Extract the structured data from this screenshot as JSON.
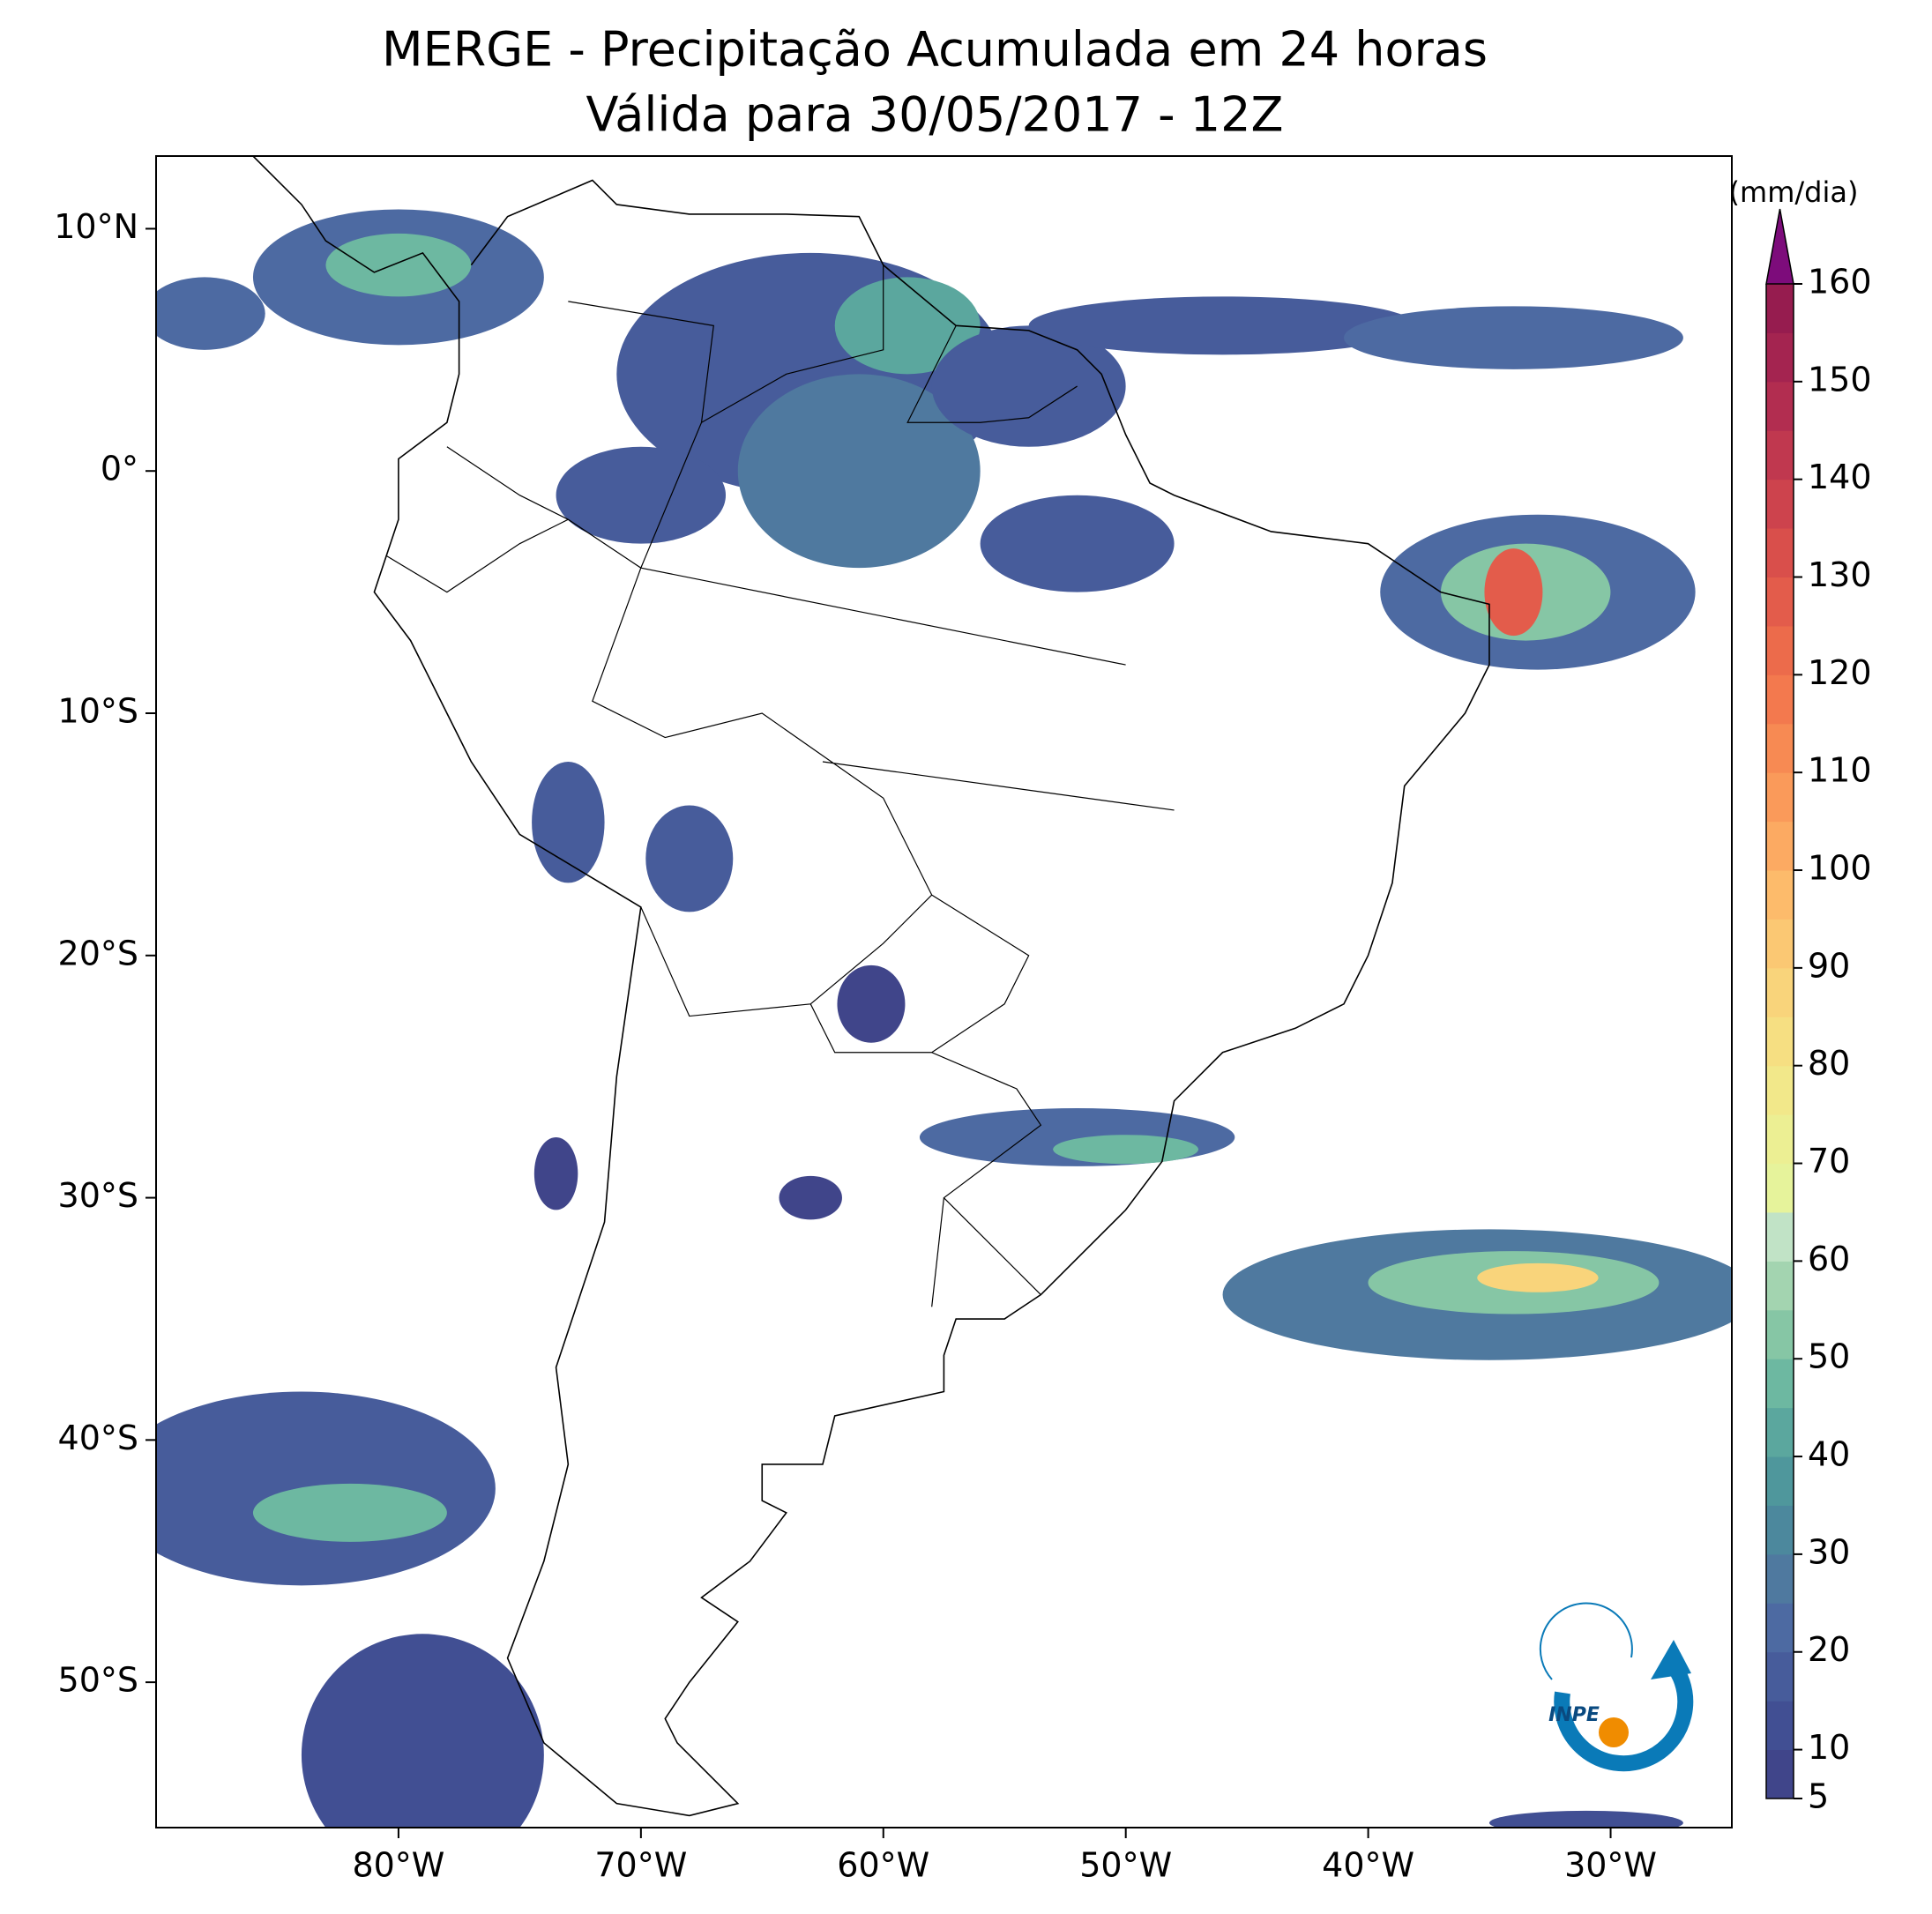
{
  "chart_data": {
    "type": "map",
    "title": "MERGE - Precipitação Acumulada em 24 horas",
    "subtitle": "Válida para 30/05/2017 - 12Z",
    "xlim": [
      -90,
      -25
    ],
    "ylim": [
      -56,
      13
    ],
    "xticks": [
      {
        "value": -80,
        "label": "80°W"
      },
      {
        "value": -70,
        "label": "70°W"
      },
      {
        "value": -60,
        "label": "60°W"
      },
      {
        "value": -50,
        "label": "50°W"
      },
      {
        "value": -40,
        "label": "40°W"
      },
      {
        "value": -30,
        "label": "30°W"
      }
    ],
    "yticks": [
      {
        "value": 10,
        "label": "10°N"
      },
      {
        "value": 0,
        "label": "0°"
      },
      {
        "value": -10,
        "label": "10°S"
      },
      {
        "value": -20,
        "label": "20°S"
      },
      {
        "value": -30,
        "label": "30°S"
      },
      {
        "value": -40,
        "label": "40°S"
      },
      {
        "value": -50,
        "label": "50°S"
      }
    ],
    "colorbar": {
      "label": "(mm/dia)",
      "lim": [
        5,
        160
      ],
      "ticks": [
        5,
        10,
        20,
        30,
        40,
        50,
        60,
        70,
        80,
        90,
        100,
        110,
        120,
        130,
        140,
        150,
        160
      ],
      "colors": [
        "#40458a",
        "#414f93",
        "#475c9b",
        "#4d6aa2",
        "#4f799f",
        "#4c889d",
        "#4f979c",
        "#5ba79e",
        "#6db8a1",
        "#86c6a5",
        "#a3d4b0",
        "#c1e3c6",
        "#e6f39b",
        "#ecef93",
        "#f2e88a",
        "#f6df82",
        "#f9d47b",
        "#fbc873",
        "#fdbb6b",
        "#fcaa62",
        "#fa9a5a",
        "#f78a53",
        "#f3794e",
        "#ec6b4b",
        "#e35c4b",
        "#d94f4b",
        "#cd434d",
        "#c0384f",
        "#b22d50",
        "#a42450",
        "#961c4f"
      ],
      "extend_color": "#7d0c7b"
    },
    "logo": "INPE"
  }
}
